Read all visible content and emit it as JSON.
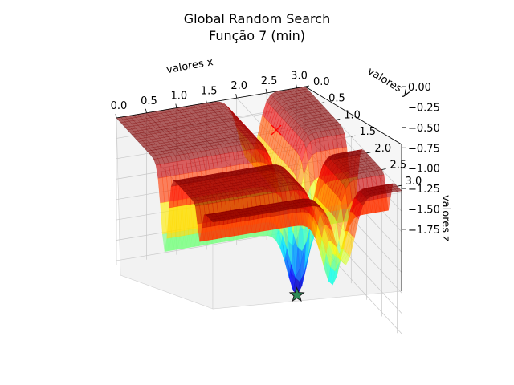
{
  "chart_data": {
    "type": "surface3d",
    "title": "Global Random Search",
    "subtitle": "Função 7 (min)",
    "xlabel": "valores x",
    "ylabel": "valores y",
    "zlabel": "valores z",
    "x_ticks": [
      "0.0",
      "0.5",
      "1.0",
      "1.5",
      "2.0",
      "2.5",
      "3.0"
    ],
    "y_ticks": [
      "0.0",
      "0.5",
      "1.0",
      "1.5",
      "2.0",
      "2.5",
      "3.0"
    ],
    "z_ticks": [
      "0.00",
      "−0.25",
      "−0.50",
      "−0.75",
      "−1.00",
      "−1.25",
      "−1.50",
      "−1.75"
    ],
    "xlim": [
      0,
      3.14
    ],
    "ylim": [
      0,
      3.14
    ],
    "zlim": [
      -1.8,
      0.0
    ],
    "colormap": "jet",
    "grid": true,
    "markers": [
      {
        "name": "start",
        "symbol": "x",
        "color": "#ff0000",
        "x": 2.2,
        "y": 0.9,
        "z": -0.05
      },
      {
        "name": "best",
        "symbol": "star",
        "color": "#2e8b57",
        "x": 2.2,
        "y": 1.57,
        "z": -1.8
      }
    ]
  }
}
